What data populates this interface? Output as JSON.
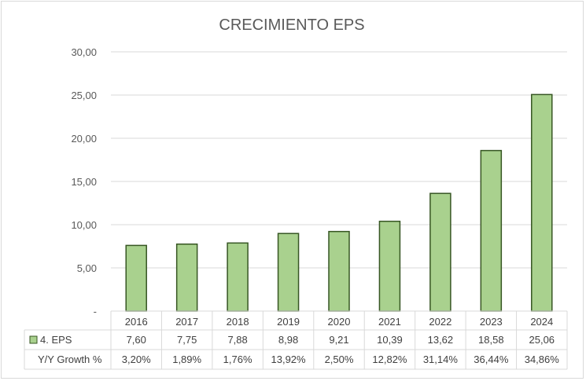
{
  "chart_data": {
    "type": "bar",
    "title": "CRECIMIENTO EPS",
    "categories": [
      "2016",
      "2017",
      "2018",
      "2019",
      "2020",
      "2021",
      "2022",
      "2023",
      "2024"
    ],
    "series": [
      {
        "name": "4. EPS",
        "values": [
          7.6,
          7.75,
          7.88,
          8.98,
          9.21,
          10.39,
          13.62,
          18.58,
          25.06
        ],
        "labels": [
          "7,60",
          "7,75",
          "7,88",
          "8,98",
          "9,21",
          "10,39",
          "13,62",
          "18,58",
          "25,06"
        ],
        "color": "#a9d18e",
        "border_color": "#375623"
      }
    ],
    "table_rows": [
      {
        "label": "Y/Y Growth %",
        "values": [
          "3,20%",
          "1,89%",
          "1,76%",
          "13,92%",
          "2,50%",
          "12,82%",
          "31,14%",
          "36,44%",
          "34,86%"
        ]
      }
    ],
    "ylim": [
      0,
      30
    ],
    "yticks": [
      {
        "value": 0,
        "label": "-"
      },
      {
        "value": 5,
        "label": "5,00"
      },
      {
        "value": 10,
        "label": "10,00"
      },
      {
        "value": 15,
        "label": "15,00"
      },
      {
        "value": 20,
        "label": "20,00"
      },
      {
        "value": 25,
        "label": "25,00"
      },
      {
        "value": 30,
        "label": "30,00"
      }
    ],
    "grid": true,
    "legend": "data-table"
  }
}
